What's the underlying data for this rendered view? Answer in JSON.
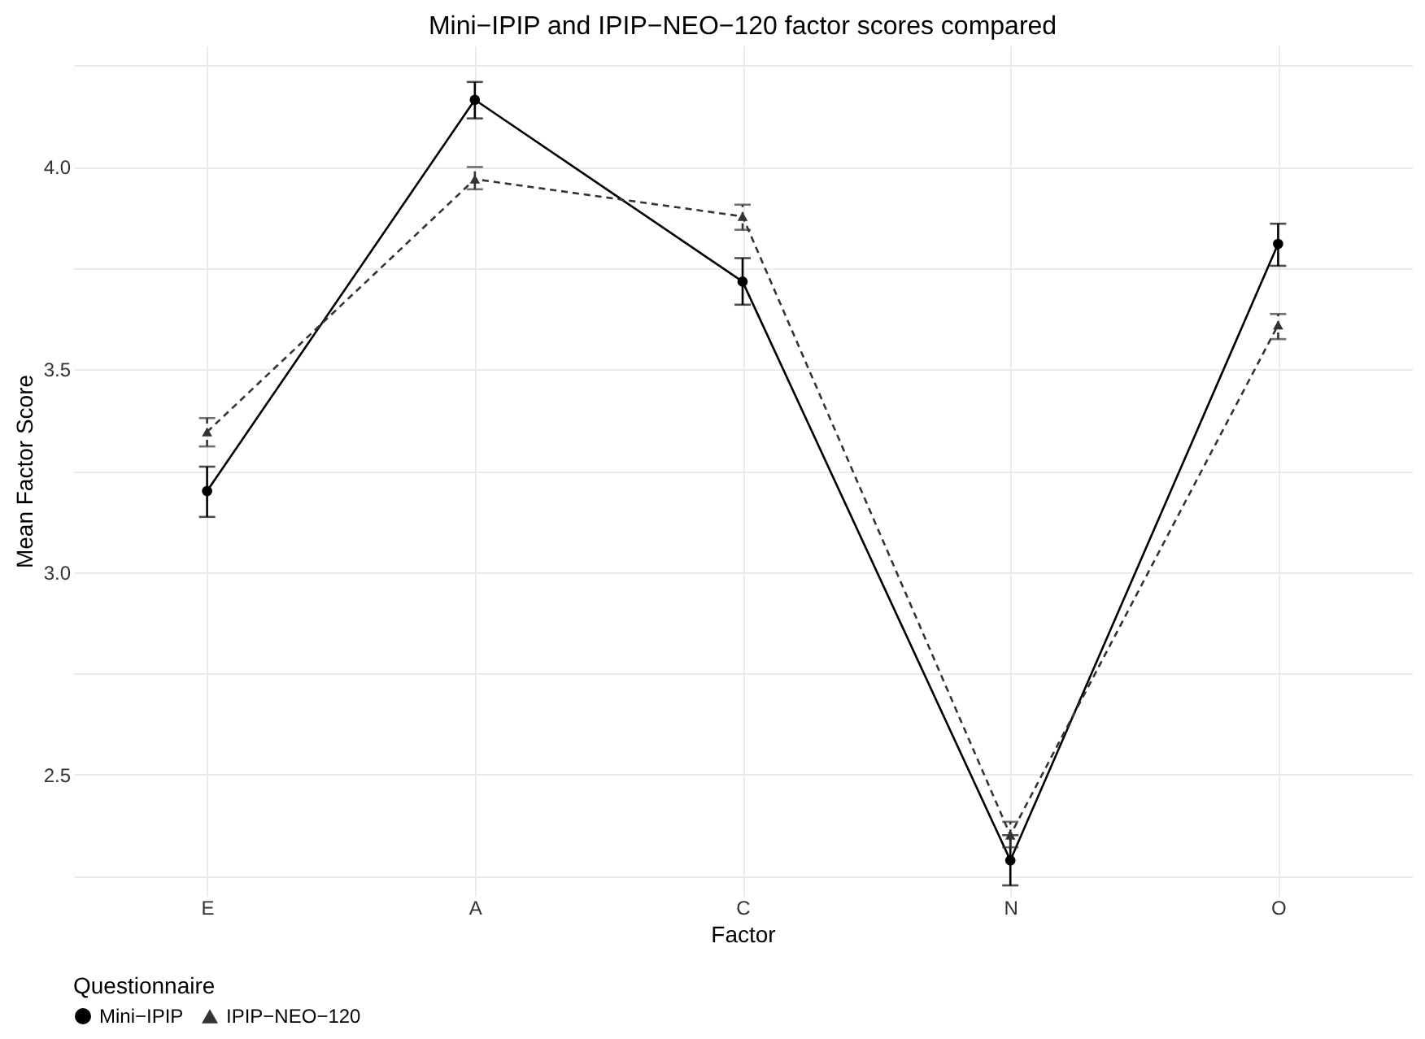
{
  "chart_data": {
    "type": "line",
    "title": "Mini−IPIP and IPIP−NEO−120 factor scores compared",
    "xlabel": "Factor",
    "ylabel": "Mean Factor Score",
    "legend_title": "Questionnaire",
    "categories": [
      "E",
      "A",
      "C",
      "N",
      "O"
    ],
    "series": [
      {
        "name": "Mini−IPIP",
        "color": "#000000",
        "marker": "circle",
        "line_style": "solid",
        "values": [
          3.2,
          4.166,
          3.717,
          2.288,
          3.81
        ],
        "errors": [
          [
            3.136,
            3.26
          ],
          [
            4.12,
            4.21
          ],
          [
            3.66,
            3.775
          ],
          [
            2.226,
            2.35
          ],
          [
            3.756,
            3.86
          ]
        ]
      },
      {
        "name": "IPIP−NEO−120",
        "color": "#333333",
        "marker": "triangle",
        "line_style": "dashed",
        "values": [
          3.346,
          3.97,
          3.878,
          2.35,
          3.61
        ],
        "errors": [
          [
            3.31,
            3.38
          ],
          [
            3.945,
            4.0
          ],
          [
            3.845,
            3.907
          ],
          [
            2.32,
            2.383
          ],
          [
            3.575,
            3.637
          ]
        ]
      }
    ],
    "ylim": [
      2.2,
      4.3
    ],
    "yticks": [
      {
        "value": 2.25,
        "label": null
      },
      2.5,
      {
        "value": 2.75,
        "label": null
      },
      {
        "value": 3,
        "label": "3.0"
      },
      {
        "value": 3.25,
        "label": null
      },
      3.5,
      {
        "value": 3.75,
        "label": null
      },
      {
        "value": 4,
        "label": "4.0"
      },
      {
        "value": 4.25,
        "label": null
      }
    ],
    "grid": true,
    "legend": "bottom"
  }
}
